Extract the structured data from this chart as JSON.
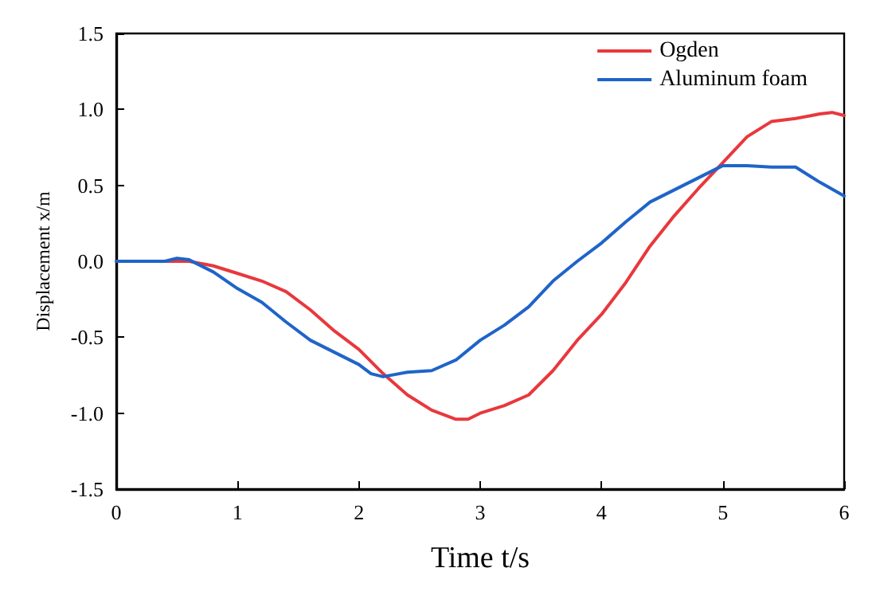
{
  "chart_data": {
    "type": "line",
    "xlabel": "Time t/s",
    "ylabel": "Displacement x/m",
    "xlim": [
      0,
      6
    ],
    "xticks": [
      0,
      1,
      2,
      3,
      4,
      5,
      6
    ],
    "ylim": [
      -1.5,
      1.5
    ],
    "yticks": [
      -1.5,
      {
        "value": -1,
        "label": "-1.0"
      },
      -0.5,
      {
        "value": 0,
        "label": "0.0"
      },
      0.5,
      {
        "value": 1,
        "label": "1.0"
      },
      1.5
    ],
    "grid": false,
    "legend": "top right",
    "marker": "none",
    "line_style": "solid",
    "series": [
      {
        "name": "Ogden",
        "color": "#e8383d",
        "x": [
          0,
          0.5,
          0.6,
          0.8,
          1.0,
          1.2,
          1.4,
          1.6,
          1.8,
          2.0,
          2.2,
          2.4,
          2.6,
          2.8,
          2.9,
          3.0,
          3.2,
          3.4,
          3.6,
          3.8,
          4.0,
          4.2,
          4.4,
          4.6,
          4.8,
          5.0,
          5.2,
          5.4,
          5.6,
          5.8,
          5.9,
          6.0
        ],
        "values": [
          0,
          0,
          0,
          -0.03,
          -0.08,
          -0.13,
          -0.2,
          -0.32,
          -0.46,
          -0.58,
          -0.74,
          -0.88,
          -0.98,
          -1.04,
          -1.04,
          -1.0,
          -0.95,
          -0.88,
          -0.72,
          -0.52,
          -0.35,
          -0.14,
          0.1,
          0.3,
          0.48,
          0.65,
          0.82,
          0.92,
          0.94,
          0.97,
          0.98,
          0.96
        ]
      },
      {
        "name": "Aluminum foam",
        "color": "#1f64c8",
        "x": [
          0,
          0.4,
          0.5,
          0.6,
          0.8,
          1.0,
          1.2,
          1.4,
          1.6,
          1.8,
          2.0,
          2.1,
          2.2,
          2.4,
          2.6,
          2.8,
          3.0,
          3.2,
          3.4,
          3.6,
          3.8,
          4.0,
          4.2,
          4.4,
          4.6,
          4.8,
          5.0,
          5.2,
          5.4,
          5.6,
          5.8,
          6.0
        ],
        "values": [
          0,
          0,
          0.02,
          0.01,
          -0.07,
          -0.18,
          -0.27,
          -0.4,
          -0.52,
          -0.6,
          -0.68,
          -0.74,
          -0.76,
          -0.73,
          -0.72,
          -0.65,
          -0.52,
          -0.42,
          -0.3,
          -0.13,
          0.0,
          0.12,
          0.26,
          0.39,
          0.47,
          0.55,
          0.63,
          0.63,
          0.62,
          0.62,
          0.52,
          0.43
        ]
      }
    ]
  }
}
